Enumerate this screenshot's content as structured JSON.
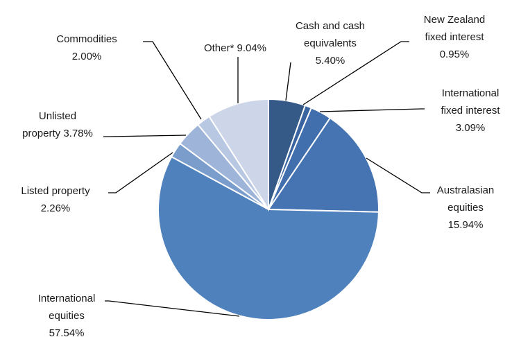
{
  "chart_data": {
    "type": "pie",
    "title": "",
    "slices": [
      {
        "label_lines": [
          "Cash and cash",
          "equivalents",
          "5.40%"
        ],
        "name": "Cash and cash equivalents",
        "value": 5.4,
        "color": "#365a87"
      },
      {
        "label_lines": [
          "New Zealand",
          "fixed interest",
          "0.95%"
        ],
        "name": "New Zealand fixed interest",
        "value": 0.95,
        "color": "#3a64a0"
      },
      {
        "label_lines": [
          "International",
          "fixed interest",
          "3.09%"
        ],
        "name": "International fixed interest",
        "value": 3.09,
        "color": "#416fae"
      },
      {
        "label_lines": [
          "Australasian",
          "equities",
          "15.94%"
        ],
        "name": "Australasian equities",
        "value": 15.94,
        "color": "#4674b2"
      },
      {
        "label_lines": [
          "International",
          "equities",
          "57.54%"
        ],
        "name": "International equities",
        "value": 57.54,
        "color": "#4f81bd"
      },
      {
        "label_lines": [
          "Listed property",
          "2.26%"
        ],
        "name": "Listed property",
        "value": 2.26,
        "color": "#7a9dcc"
      },
      {
        "label_lines": [
          "Unlisted",
          "property 3.78%"
        ],
        "name": "Unlisted property",
        "value": 3.78,
        "color": "#9eb4d9"
      },
      {
        "label_lines": [
          "Commodities",
          "2.00%"
        ],
        "name": "Commodities",
        "value": 2.0,
        "color": "#b8c8e3"
      },
      {
        "label_lines": [
          "Other* 9.04%"
        ],
        "name": "Other*",
        "value": 9.04,
        "color": "#ccd6e8"
      }
    ]
  }
}
